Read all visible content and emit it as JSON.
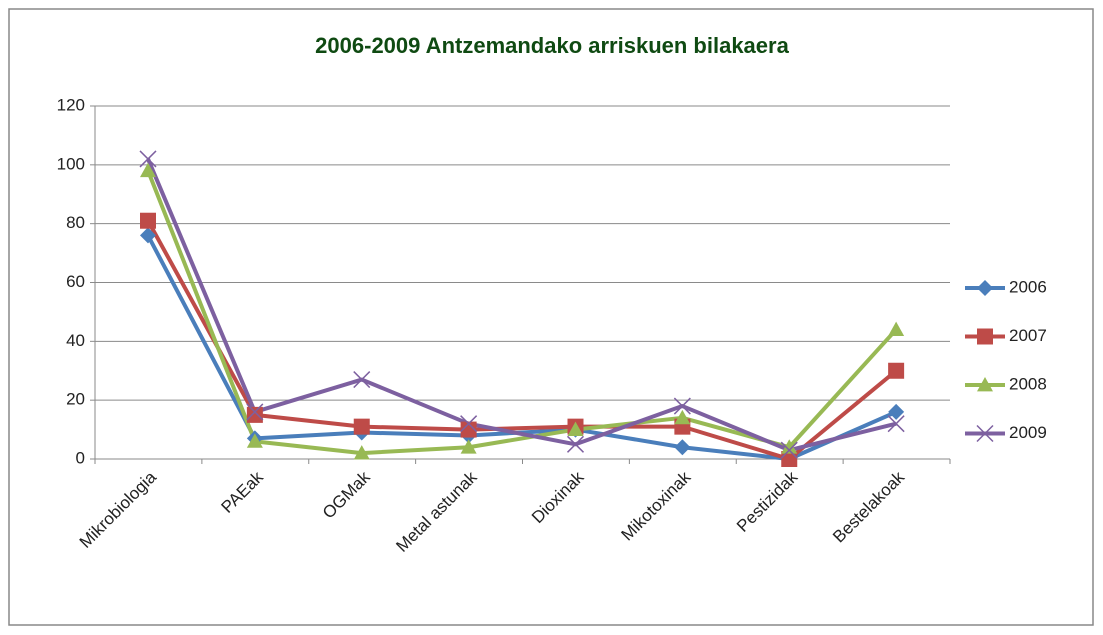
{
  "chart_data": {
    "type": "line",
    "title": "2006-2009 Antzemandako arriskuen bilakaera",
    "categories": [
      "Mikrobiologia",
      "PAEak",
      "OGMak",
      "Metal astunak",
      "Dioxinak",
      "Mikotoxinak",
      "Pestizidak",
      "Bestelakoak"
    ],
    "series": [
      {
        "name": "2006",
        "color": "#4a7ebb",
        "marker": "diamond",
        "values": [
          76,
          7,
          9,
          8,
          10,
          4,
          0,
          16
        ]
      },
      {
        "name": "2007",
        "color": "#be4b48",
        "marker": "square",
        "values": [
          81,
          15,
          11,
          10,
          11,
          11,
          0,
          30
        ]
      },
      {
        "name": "2008",
        "color": "#98b954",
        "marker": "triangle",
        "values": [
          98,
          6,
          2,
          4,
          10,
          14,
          4,
          44
        ]
      },
      {
        "name": "2009",
        "color": "#7d60a0",
        "marker": "x",
        "values": [
          102,
          16,
          27,
          12,
          5,
          18,
          3,
          12
        ]
      }
    ],
    "ylim": [
      0,
      120
    ],
    "yticks": [
      0,
      20,
      40,
      60,
      80,
      100,
      120
    ],
    "grid": true,
    "legend": "right"
  }
}
